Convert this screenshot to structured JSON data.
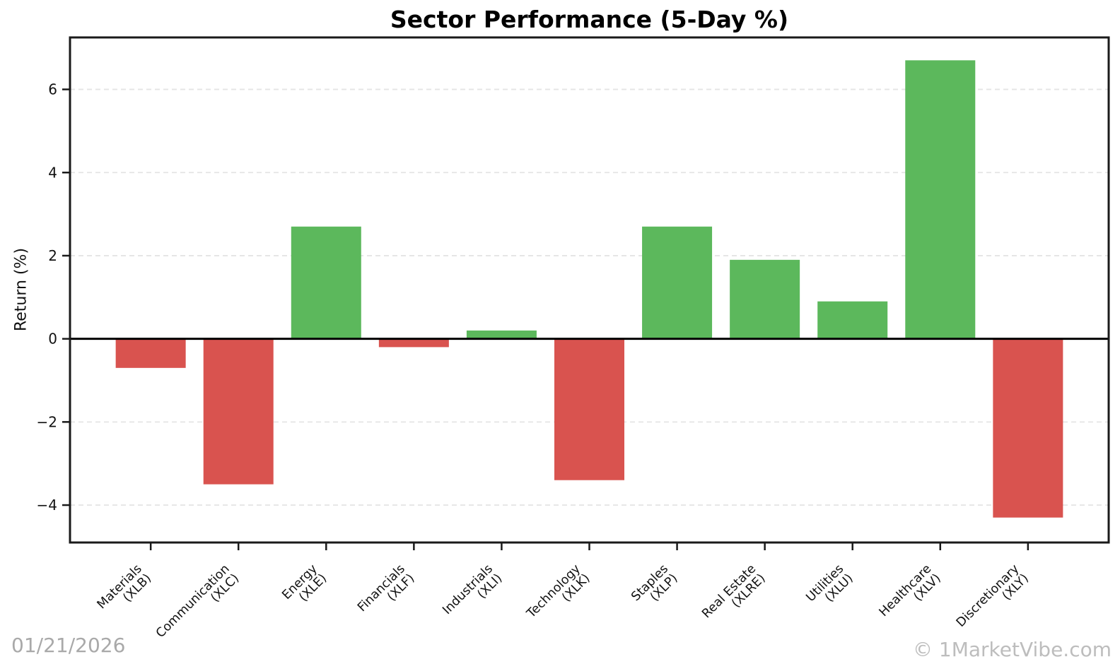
{
  "chart_data": {
    "type": "bar",
    "title": "Sector Performance (5-Day %)",
    "xlabel": "",
    "ylabel": "Return (%)",
    "categories": [
      "Materials",
      "Communication",
      "Energy",
      "Financials",
      "Industrials",
      "Technology",
      "Staples",
      "Real Estate",
      "Utilities",
      "Healthcare",
      "Discretionary"
    ],
    "tickers": [
      "XLB",
      "XLC",
      "XLE",
      "XLF",
      "XLI",
      "XLK",
      "XLP",
      "XLRE",
      "XLU",
      "XLV",
      "XLY"
    ],
    "values": [
      -0.7,
      -3.5,
      2.7,
      -0.2,
      0.2,
      -3.4,
      2.7,
      1.9,
      0.9,
      6.7,
      -4.3
    ],
    "yticks": [
      6,
      4,
      2,
      0,
      -2,
      -4
    ],
    "ylim": [
      -4.9,
      7.25
    ],
    "grid": "horizontal-dashed",
    "legend": "none",
    "positive_color": "#5cb85c",
    "negative_color": "#d9534f",
    "grid_color": "#e4e4e4",
    "axis_color": "#1a1a1a"
  },
  "footer": {
    "date": "01/21/2026",
    "brand": "© 1MarketVibe.com"
  }
}
